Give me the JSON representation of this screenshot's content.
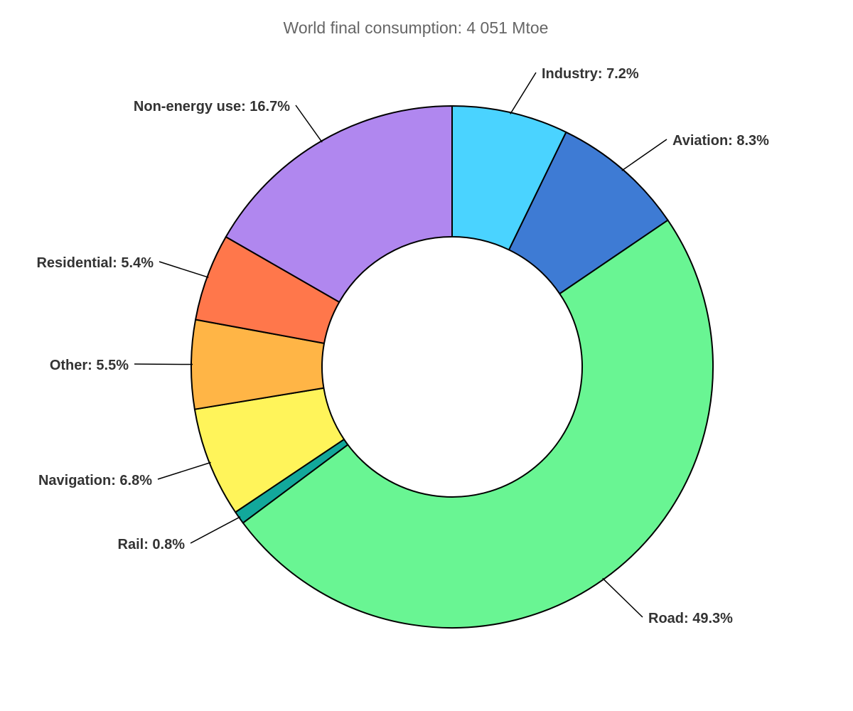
{
  "chart_data": {
    "type": "pie",
    "title": "World final consumption: 4 051 Mtoe",
    "slices": [
      {
        "label": "Industry",
        "value": 7.2,
        "display": "Industry: 7.2%",
        "color": "#4ad3ff"
      },
      {
        "label": "Aviation",
        "value": 8.3,
        "display": "Aviation: 8.3%",
        "color": "#3e7bd4"
      },
      {
        "label": "Road",
        "value": 49.3,
        "display": "Road: 49.3%",
        "color": "#69f593"
      },
      {
        "label": "Rail",
        "value": 0.8,
        "display": "Rail: 0.8%",
        "color": "#12a89b"
      },
      {
        "label": "Navigation",
        "value": 6.8,
        "display": "Navigation: 6.8%",
        "color": "#fff45a"
      },
      {
        "label": "Other",
        "value": 5.5,
        "display": "Other: 5.5%",
        "color": "#ffb546"
      },
      {
        "label": "Residential",
        "value": 5.4,
        "display": "Residential: 5.4%",
        "color": "#ff774b"
      },
      {
        "label": "Non-energy use",
        "value": 16.7,
        "display": "Non-energy use: 16.7%",
        "color": "#b087ef"
      }
    ],
    "legend": "none"
  }
}
